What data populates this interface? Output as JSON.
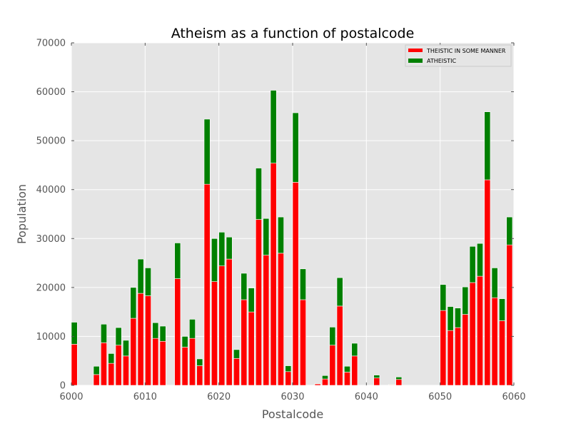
{
  "chart_data": {
    "type": "bar",
    "stacked": true,
    "title": "Atheism as a function of postalcode",
    "xlabel": "Postalcode",
    "ylabel": "Population",
    "xlim": [
      6000,
      6060
    ],
    "ylim": [
      0,
      70000
    ],
    "xticks": [
      6000,
      6010,
      6020,
      6030,
      6040,
      6050,
      6060
    ],
    "yticks": [
      0,
      10000,
      20000,
      30000,
      40000,
      50000,
      60000,
      70000
    ],
    "grid": true,
    "legend_position": "top-right",
    "series": [
      {
        "name": "THEISTIC IN SOME MANNER",
        "color": "#ff0000"
      },
      {
        "name": "ATHEISTIC",
        "color": "#008000"
      }
    ],
    "x": [
      6000,
      6003,
      6004,
      6005,
      6006,
      6007,
      6008,
      6009,
      6010,
      6011,
      6012,
      6014,
      6015,
      6016,
      6017,
      6018,
      6019,
      6020,
      6021,
      6022,
      6023,
      6024,
      6025,
      6026,
      6027,
      6028,
      6029,
      6030,
      6031,
      6033,
      6034,
      6035,
      6036,
      6037,
      6038,
      6041,
      6043,
      6044,
      6050,
      6051,
      6052,
      6053,
      6054,
      6055,
      6056,
      6057,
      6058,
      6059
    ],
    "theistic": [
      8400,
      2200,
      8700,
      4500,
      8200,
      6000,
      13700,
      18800,
      18300,
      9600,
      9000,
      21800,
      7800,
      9600,
      4000,
      41100,
      21200,
      24400,
      25800,
      5500,
      17500,
      15000,
      33900,
      26600,
      45400,
      27000,
      2800,
      41500,
      17500,
      300,
      1300,
      8200,
      16200,
      2700,
      6000,
      1500,
      100,
      1200,
      15300,
      11200,
      11800,
      14500,
      21000,
      22300,
      42000,
      17900,
      13200,
      28700
    ],
    "atheistic": [
      4500,
      1700,
      3800,
      2000,
      3600,
      3200,
      6300,
      7000,
      5700,
      3200,
      3100,
      7300,
      2200,
      3900,
      1400,
      13300,
      8800,
      6900,
      4500,
      1800,
      5400,
      4900,
      10500,
      7500,
      14900,
      7400,
      1200,
      14200,
      6300,
      100,
      700,
      3700,
      5800,
      1200,
      2600,
      600,
      100,
      500,
      5300,
      4900,
      4000,
      5600,
      7400,
      6700,
      13900,
      6100,
      4500,
      5700
    ]
  }
}
